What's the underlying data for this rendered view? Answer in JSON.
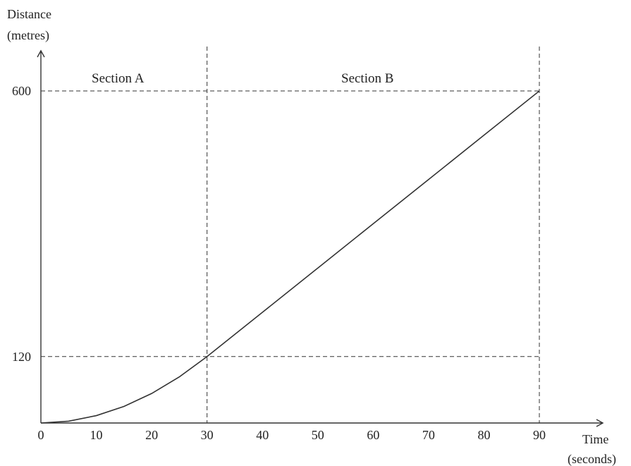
{
  "chart_data": {
    "type": "line",
    "title": "",
    "xlabel": [
      "Time",
      "(seconds)"
    ],
    "ylabel": [
      "Distance",
      "(metres)"
    ],
    "xlim": [
      0,
      90
    ],
    "ylim": [
      0,
      600
    ],
    "x_ticks": [
      0,
      10,
      20,
      30,
      40,
      50,
      60,
      70,
      80,
      90
    ],
    "y_ticks": [
      120,
      600
    ],
    "grid": false,
    "sections": [
      {
        "label": "Section A",
        "from": 0,
        "to": 30
      },
      {
        "label": "Section B",
        "from": 30,
        "to": 90
      }
    ],
    "reference_lines": {
      "vertical": [
        30,
        90
      ],
      "horizontal": [
        120,
        600
      ]
    },
    "series": [
      {
        "x": [
          0,
          5,
          10,
          15,
          20,
          25,
          30,
          40,
          50,
          60,
          70,
          80,
          90
        ],
        "y": [
          0,
          3.3,
          13.3,
          30,
          53.3,
          83.3,
          120,
          200,
          280,
          360,
          440,
          520,
          600
        ]
      }
    ]
  }
}
